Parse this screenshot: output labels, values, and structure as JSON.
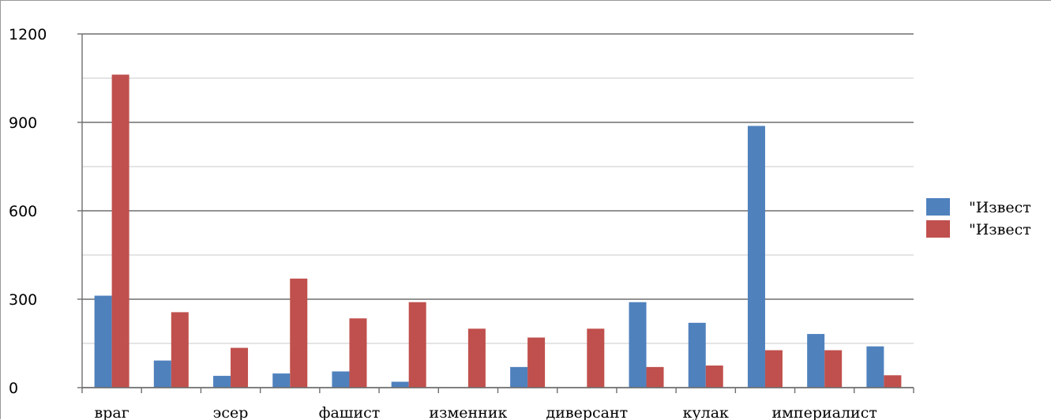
{
  "chart_data": {
    "type": "bar",
    "title": "",
    "xlabel": "",
    "ylabel": "",
    "ylim": [
      0,
      1200
    ],
    "y_ticks": [
      0,
      300,
      600,
      900,
      1200
    ],
    "grid": "horizontal, minor interval 150",
    "legend_position": "right",
    "categories": [
      "враг",
      "",
      "эсер",
      "",
      "фашист",
      "",
      "изменник",
      "",
      "диверсант",
      "",
      "кулак",
      "",
      "империалист",
      ""
    ],
    "series": [
      {
        "name": "\"Извест",
        "color": "#4f81bd",
        "values": [
          312,
          92,
          40,
          48,
          55,
          20,
          0,
          70,
          0,
          290,
          220,
          888,
          182,
          140
        ]
      },
      {
        "name": "\"Извест",
        "color": "#c0504d",
        "values": [
          1062,
          256,
          135,
          370,
          235,
          290,
          200,
          170,
          200,
          70,
          75,
          127,
          127,
          42
        ]
      }
    ]
  }
}
